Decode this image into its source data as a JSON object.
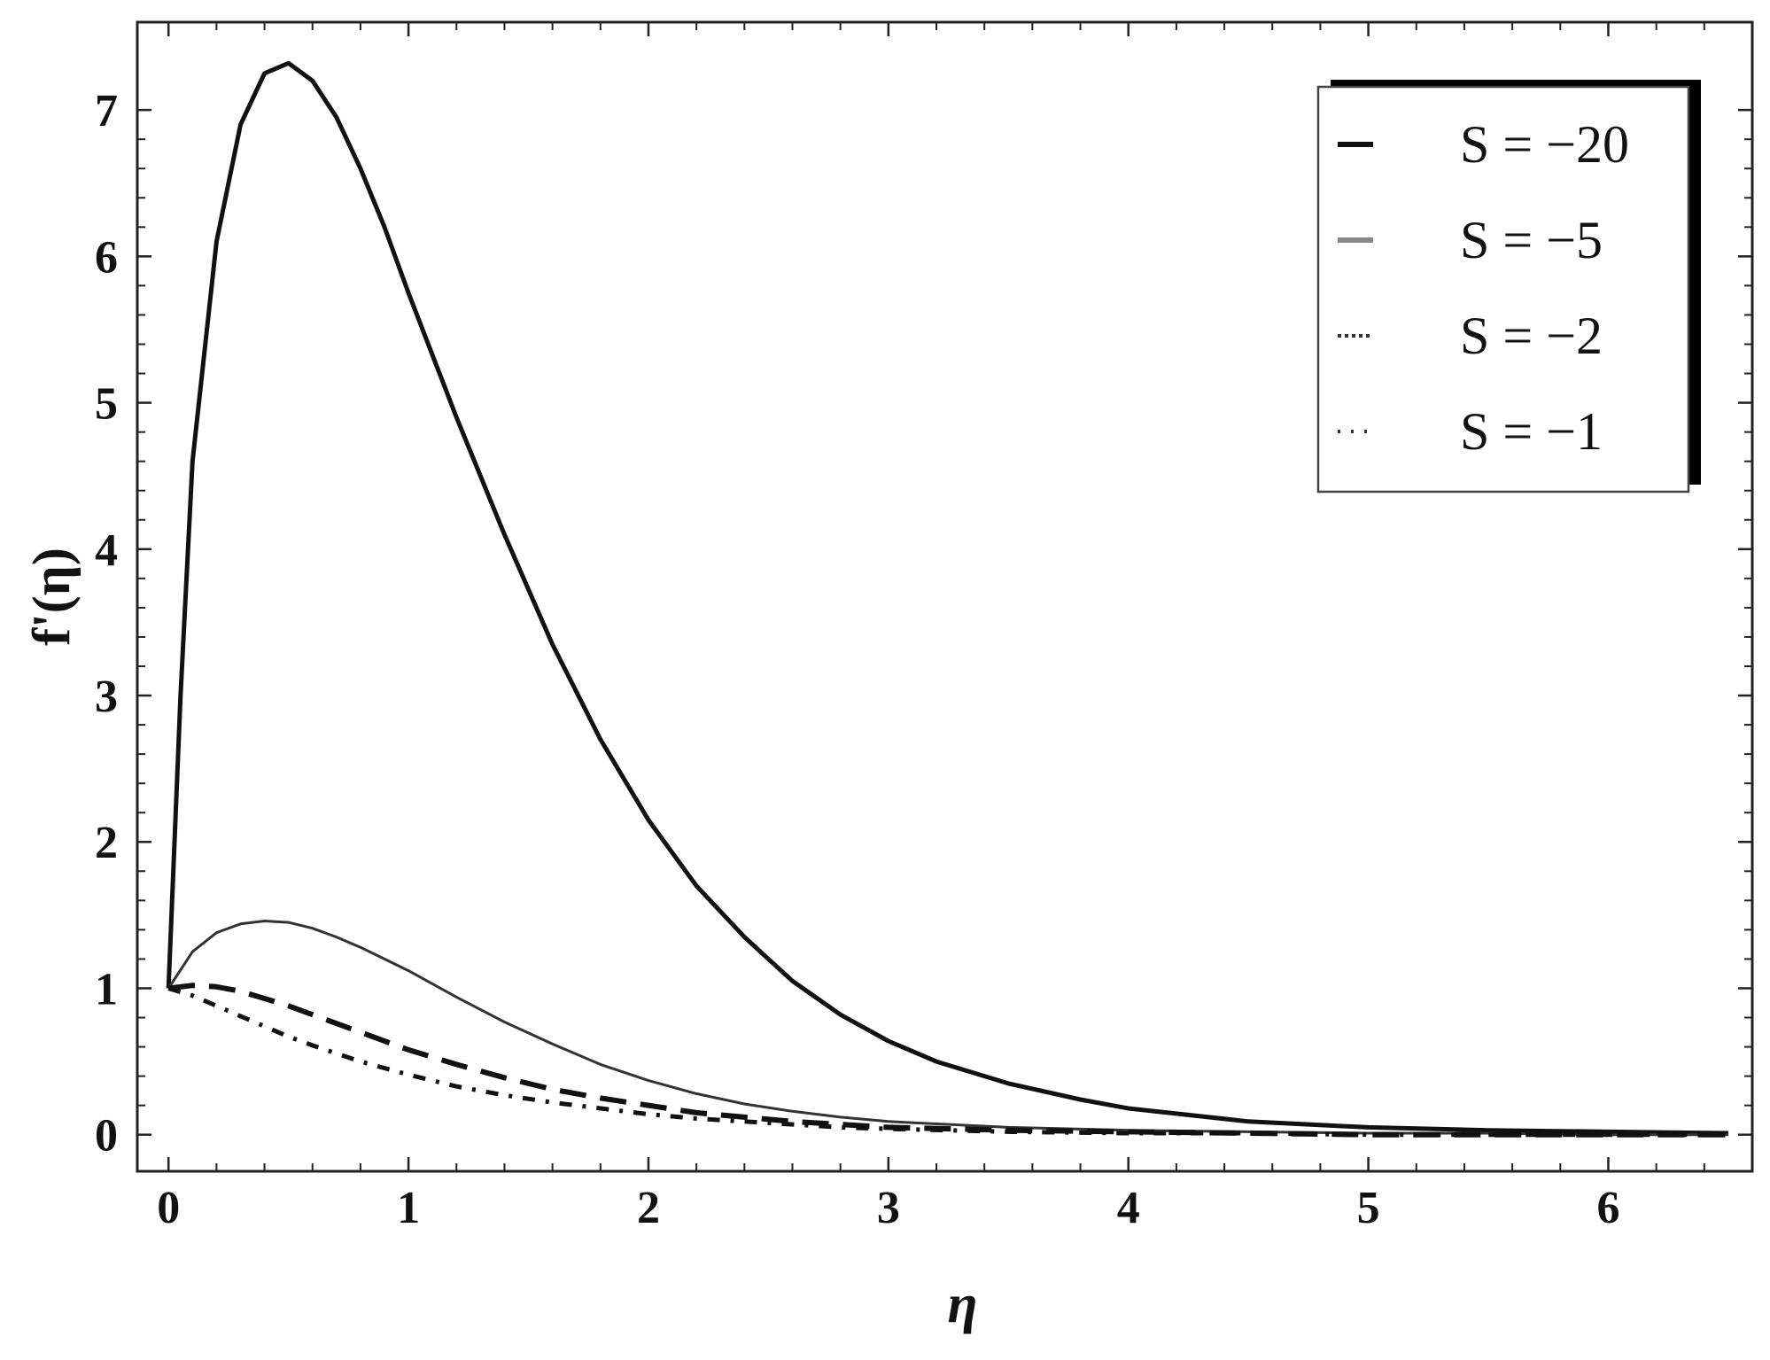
{
  "chart_data": {
    "type": "line",
    "title": "",
    "xlabel": "η",
    "ylabel": "f'(η)",
    "xlim": [
      -0.13,
      6.6
    ],
    "ylim": [
      -0.25,
      7.6
    ],
    "xticks": [
      0,
      1,
      2,
      3,
      4,
      5,
      6
    ],
    "xtick_labels": [
      "0",
      "1",
      "2",
      "3",
      "4",
      "5",
      "6"
    ],
    "yticks": [
      0,
      1,
      2,
      3,
      4,
      5,
      6,
      7
    ],
    "ytick_labels": [
      "0",
      "1",
      "2",
      "3",
      "4",
      "5",
      "6",
      "7"
    ],
    "grid": false,
    "legend": {
      "position": "top-right",
      "entries": [
        "S = −20",
        "S = −5",
        "S = −2",
        "S = −1"
      ]
    },
    "series": [
      {
        "name": "S = −20",
        "style": "solid-thick",
        "color": "#111111",
        "x": [
          0,
          0.05,
          0.1,
          0.2,
          0.3,
          0.4,
          0.5,
          0.6,
          0.7,
          0.8,
          0.9,
          1.0,
          1.2,
          1.4,
          1.6,
          1.8,
          2.0,
          2.2,
          2.4,
          2.6,
          2.8,
          3.0,
          3.2,
          3.5,
          3.8,
          4.0,
          4.5,
          5.0,
          5.5,
          6.0,
          6.5
        ],
        "y": [
          1.0,
          3.0,
          4.6,
          6.1,
          6.9,
          7.25,
          7.32,
          7.2,
          6.95,
          6.6,
          6.2,
          5.75,
          4.9,
          4.1,
          3.35,
          2.7,
          2.15,
          1.7,
          1.35,
          1.05,
          0.82,
          0.64,
          0.5,
          0.35,
          0.24,
          0.18,
          0.09,
          0.05,
          0.03,
          0.02,
          0.01
        ]
      },
      {
        "name": "S = −5",
        "style": "solid-thin",
        "color": "#333333",
        "x": [
          0,
          0.1,
          0.2,
          0.3,
          0.4,
          0.5,
          0.6,
          0.7,
          0.8,
          0.9,
          1.0,
          1.2,
          1.4,
          1.6,
          1.8,
          2.0,
          2.2,
          2.4,
          2.6,
          2.8,
          3.0,
          3.5,
          4.0,
          4.5,
          5.0,
          5.5,
          6.0,
          6.5
        ],
        "y": [
          1.0,
          1.25,
          1.38,
          1.44,
          1.46,
          1.45,
          1.41,
          1.35,
          1.28,
          1.2,
          1.12,
          0.94,
          0.77,
          0.62,
          0.48,
          0.37,
          0.28,
          0.21,
          0.16,
          0.12,
          0.09,
          0.05,
          0.03,
          0.02,
          0.01,
          0.01,
          0.0,
          0.0
        ]
      },
      {
        "name": "S = −2",
        "style": "dashed",
        "color": "#111111",
        "x": [
          0,
          0.1,
          0.2,
          0.3,
          0.4,
          0.5,
          0.6,
          0.8,
          1.0,
          1.2,
          1.4,
          1.6,
          1.8,
          2.0,
          2.2,
          2.4,
          2.6,
          2.8,
          3.0,
          3.5,
          4.0,
          4.5,
          5.0,
          5.5,
          6.0,
          6.5
        ],
        "y": [
          1.0,
          1.02,
          1.01,
          0.98,
          0.93,
          0.88,
          0.82,
          0.7,
          0.58,
          0.48,
          0.39,
          0.31,
          0.25,
          0.2,
          0.15,
          0.12,
          0.09,
          0.07,
          0.05,
          0.03,
          0.02,
          0.01,
          0.0,
          0.0,
          0.0,
          0.0
        ]
      },
      {
        "name": "S = −1",
        "style": "dash-dot",
        "color": "#111111",
        "x": [
          0,
          0.1,
          0.2,
          0.3,
          0.4,
          0.5,
          0.6,
          0.8,
          1.0,
          1.2,
          1.4,
          1.6,
          1.8,
          2.0,
          2.2,
          2.4,
          2.6,
          2.8,
          3.0,
          3.5,
          4.0,
          4.5,
          5.0,
          5.5,
          6.0,
          6.5
        ],
        "y": [
          1.0,
          0.95,
          0.88,
          0.81,
          0.74,
          0.67,
          0.61,
          0.5,
          0.41,
          0.33,
          0.27,
          0.22,
          0.18,
          0.14,
          0.11,
          0.09,
          0.07,
          0.05,
          0.04,
          0.02,
          0.01,
          0.01,
          0.0,
          0.0,
          0.0,
          0.0
        ]
      }
    ]
  }
}
